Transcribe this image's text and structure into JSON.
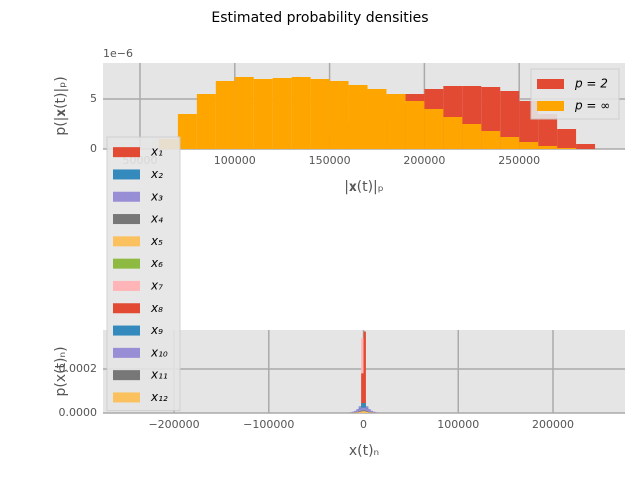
{
  "title": "Estimated probability densities",
  "chart_data": [
    {
      "type": "histogram",
      "xlabel": "|𝐱(t)|ₚ",
      "ylabel": "p(|𝐱(t)|ₚ)",
      "y_offset_label": "1e−6",
      "bins": [
        60000,
        70000,
        80000,
        90000,
        100000,
        110000,
        120000,
        130000,
        140000,
        150000,
        160000,
        170000,
        180000,
        190000,
        200000,
        210000,
        220000,
        230000,
        240000,
        250000,
        260000,
        270000,
        280000,
        290000
      ],
      "series": [
        {
          "name": "p = 2",
          "color": "#E24A33",
          "values": [
            0,
            0,
            0,
            0,
            0,
            0,
            0,
            0,
            0,
            1.5,
            2.5,
            3.5,
            4.5,
            5.5,
            6,
            6.3,
            6.3,
            6.2,
            5.8,
            4.8,
            3.5,
            2,
            0.5
          ]
        },
        {
          "name": "p = ∞",
          "color": "#FFA500",
          "values": [
            1,
            3.5,
            5.5,
            6.8,
            7.2,
            7,
            7.1,
            7.2,
            7,
            6.8,
            6.4,
            6,
            5.5,
            4.8,
            4,
            3.2,
            2.5,
            1.8,
            1.2,
            0.7,
            0.3,
            0.1,
            0
          ]
        }
      ],
      "xlim": [
        30500,
        305800
      ],
      "ylim": [
        0,
        8.6
      ],
      "xticks": [
        50000,
        100000,
        150000,
        200000,
        250000
      ],
      "yticks": [
        0,
        5
      ],
      "grid": true,
      "legend": "upper right"
    },
    {
      "type": "histogram",
      "xlabel": "x(t)ₙ",
      "ylabel": "p(x(t)ₙ)",
      "bins": [
        -15000,
        -12500,
        -10000,
        -7500,
        -5000,
        -2500,
        0,
        2500,
        5000,
        7500,
        10000,
        12500,
        15000
      ],
      "series": [
        {
          "name": "x₁",
          "color": "#E24A33",
          "values": [
            1e-06,
            2e-06,
            4e-06,
            8e-06,
            2e-05,
            6e-05,
            6e-05,
            2e-05,
            8e-06,
            4e-06,
            2e-06,
            1e-06
          ]
        },
        {
          "name": "x₂",
          "color": "#348ABD",
          "values": [
            2e-06,
            4e-06,
            8e-06,
            1.5e-05,
            3e-05,
            5e-05,
            5e-05,
            3e-05,
            1.5e-05,
            8e-06,
            4e-06,
            2e-06
          ]
        },
        {
          "name": "x₃",
          "color": "#988ED5",
          "values": [
            3e-06,
            6e-06,
            1e-05,
            1.8e-05,
            2.8e-05,
            3.8e-05,
            3.8e-05,
            2.8e-05,
            1.8e-05,
            1e-05,
            6e-06,
            3e-06
          ]
        },
        {
          "name": "x₄",
          "color": "#777777",
          "values": [
            1e-06,
            2e-06,
            4e-06,
            8e-06,
            1.6e-05,
            3e-05,
            3e-05,
            1.6e-05,
            8e-06,
            4e-06,
            2e-06,
            1e-06
          ]
        },
        {
          "name": "x₅",
          "color": "#FBC15E",
          "values": [
            1e-06,
            2e-06,
            3e-06,
            6e-06,
            1.2e-05,
            2.5e-05,
            2.5e-05,
            1.2e-05,
            6e-06,
            3e-06,
            2e-06,
            1e-06
          ]
        },
        {
          "name": "x₆",
          "color": "#8EBA42",
          "values": [
            1e-06,
            1e-06,
            2e-06,
            5e-06,
            1e-05,
            2e-05,
            2e-05,
            1e-05,
            5e-06,
            2e-06,
            1e-06,
            1e-06
          ]
        },
        {
          "name": "x₇",
          "color": "#FFB5B8",
          "values": [
            0,
            0,
            1e-06,
            3e-06,
            1e-05,
            0.00034,
            0.00034,
            1e-05,
            3e-06,
            1e-06,
            0,
            0
          ]
        },
        {
          "name": "x₈",
          "color": "#E24A33",
          "values": [
            0,
            0,
            0,
            2e-06,
            6e-06,
            0.00018,
            0.00037,
            6e-06,
            2e-06,
            0,
            0,
            0
          ]
        },
        {
          "name": "x₉",
          "color": "#348ABD",
          "values": [
            1e-06,
            2e-06,
            5e-06,
            1e-05,
            2e-05,
            4.5e-05,
            4.5e-05,
            2e-05,
            1e-05,
            5e-06,
            2e-06,
            1e-06
          ]
        },
        {
          "name": "x₁₀",
          "color": "#988ED5",
          "values": [
            2e-06,
            4e-06,
            7e-06,
            1.2e-05,
            1.8e-05,
            2.4e-05,
            2.4e-05,
            1.8e-05,
            1.2e-05,
            7e-06,
            4e-06,
            2e-06
          ]
        },
        {
          "name": "x₁₁",
          "color": "#777777",
          "values": [
            1e-06,
            2e-06,
            3e-06,
            5e-06,
            8e-06,
            1.2e-05,
            1.2e-05,
            8e-06,
            5e-06,
            3e-06,
            2e-06,
            1e-06
          ]
        },
        {
          "name": "x₁₂",
          "color": "#FBC15E",
          "values": [
            1e-06,
            1e-06,
            2e-06,
            3e-06,
            5e-06,
            8e-06,
            8e-06,
            5e-06,
            3e-06,
            2e-06,
            1e-06,
            1e-06
          ]
        }
      ],
      "xlim": [
        -275000,
        276000
      ],
      "ylim": [
        0,
        0.000377
      ],
      "xticks": [
        {
          "value": -200000,
          "label": "−200000"
        },
        {
          "value": -100000,
          "label": "−100000"
        },
        0,
        100000,
        200000
      ],
      "yticks": [
        {
          "value": 0,
          "label": "0.0000"
        },
        {
          "value": 0.0002,
          "label": "0.0002"
        }
      ],
      "grid": true
    }
  ]
}
